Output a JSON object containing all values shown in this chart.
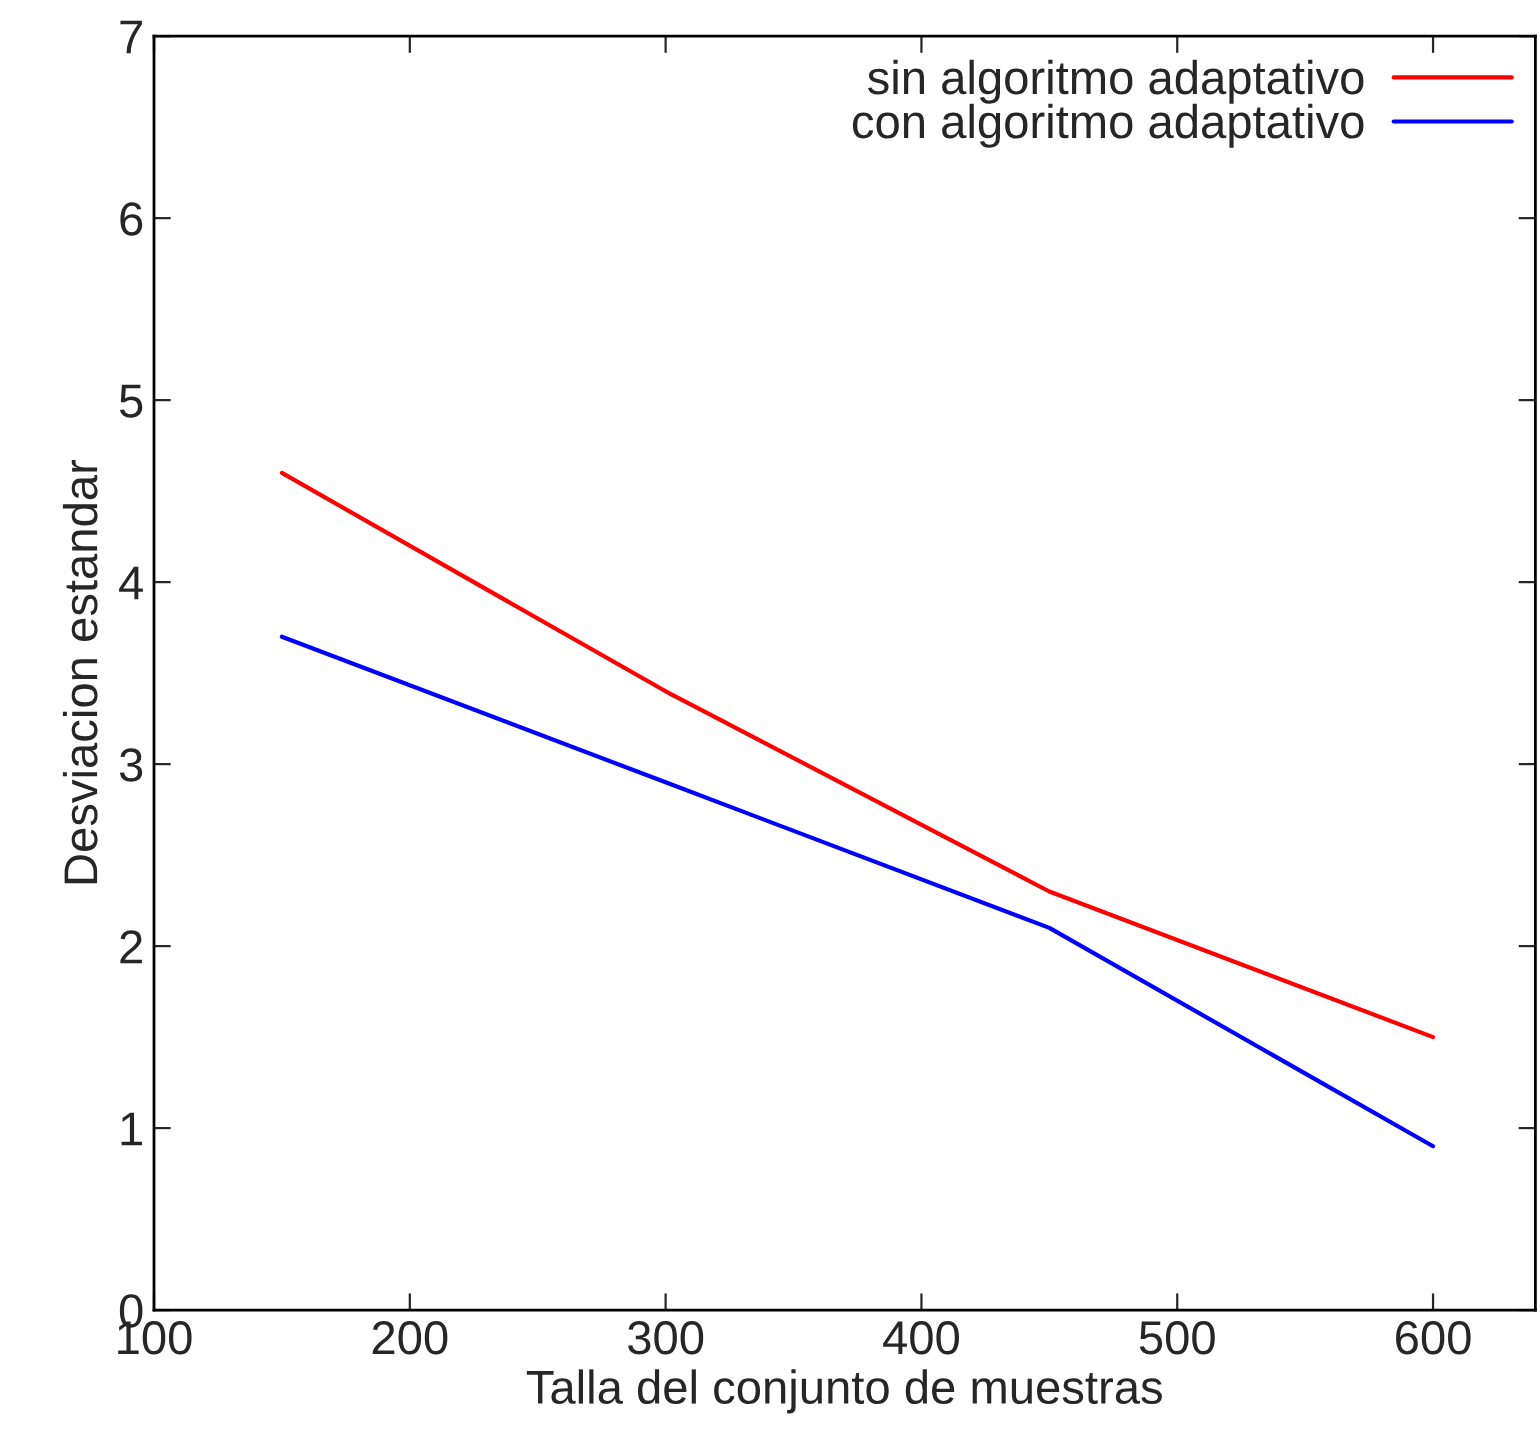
{
  "chart_data": {
    "type": "line",
    "xlabel": "Talla del conjunto de muestras",
    "ylabel": "Desviacion estandar",
    "x": [
      150,
      300,
      450,
      600
    ],
    "series": [
      {
        "name": "sin algoritmo adaptativo",
        "color": "#ff0000",
        "values": [
          4.6,
          3.4,
          2.3,
          1.5
        ]
      },
      {
        "name": "con algoritmo adaptativo",
        "color": "#0000ff",
        "values": [
          3.7,
          2.9,
          2.1,
          0.9
        ]
      }
    ],
    "xlim": [
      100,
      640
    ],
    "ylim": [
      0,
      7
    ],
    "xticks": [
      100,
      200,
      300,
      400,
      500,
      600
    ],
    "yticks": [
      0,
      1,
      2,
      3,
      4,
      5,
      6,
      7
    ],
    "legend": "top right",
    "grid": false,
    "marker": "none",
    "line_style": "solid"
  }
}
